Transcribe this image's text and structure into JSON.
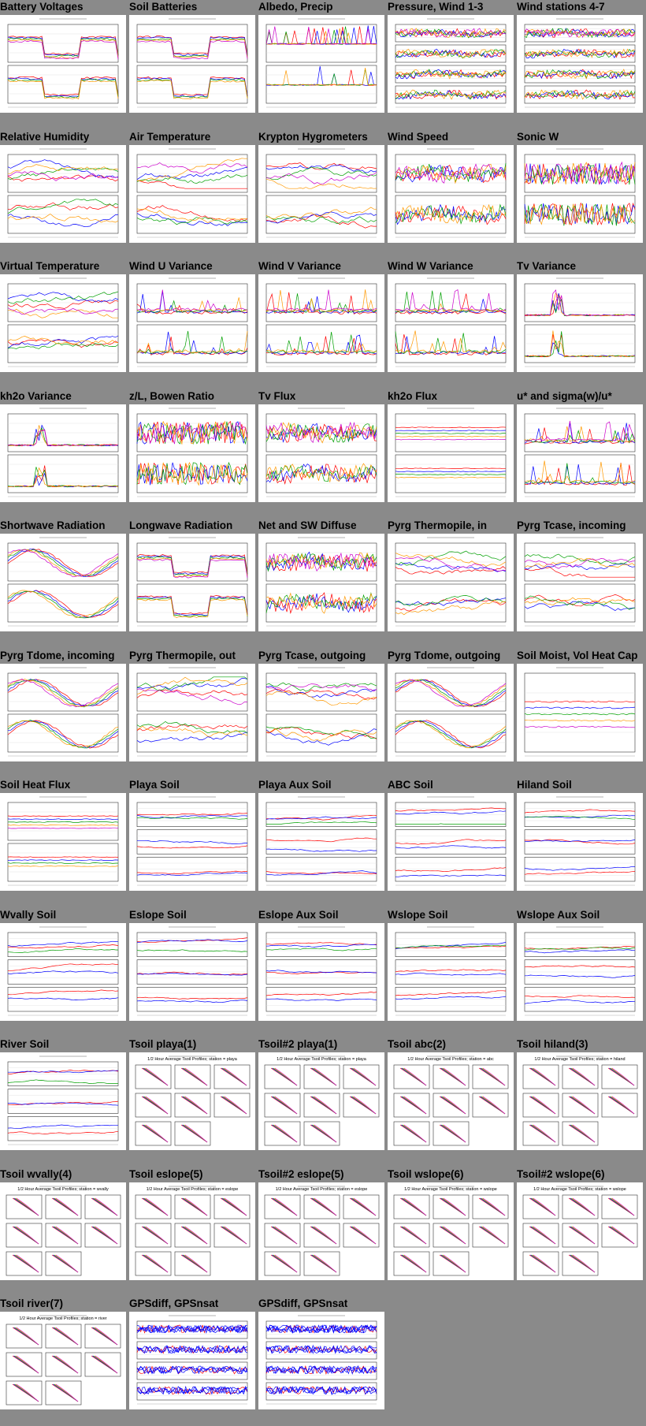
{
  "page": {
    "background": "#8a8a8a",
    "colors": [
      "#ff0000",
      "#0000ff",
      "#00a000",
      "#ff9900",
      "#cc00cc",
      "#00aaaa",
      "#888888",
      "#dddd00"
    ]
  },
  "plots": [
    {
      "title": "Battery Voltages",
      "kind": "ts2",
      "style": "battery"
    },
    {
      "title": "Soil Batteries",
      "kind": "ts2",
      "style": "battery"
    },
    {
      "title": "Albedo, Precip",
      "kind": "ts2",
      "style": "albedo"
    },
    {
      "title": "Pressure, Wind 1-3",
      "kind": "ts4",
      "style": "noisy"
    },
    {
      "title": "Wind stations 4-7",
      "kind": "ts4",
      "style": "noisy"
    },
    {
      "title": "Relative Humidity",
      "kind": "ts2",
      "style": "wavy"
    },
    {
      "title": "Air Temperature",
      "kind": "ts2",
      "style": "wavy"
    },
    {
      "title": "Krypton Hygrometers",
      "kind": "ts2",
      "style": "wavy"
    },
    {
      "title": "Wind Speed",
      "kind": "ts2",
      "style": "noisy"
    },
    {
      "title": "Sonic W",
      "kind": "ts2",
      "style": "dense"
    },
    {
      "title": "Virtual Temperature",
      "kind": "ts2",
      "style": "wavy"
    },
    {
      "title": "Wind U Variance",
      "kind": "ts2",
      "style": "spiky"
    },
    {
      "title": "Wind V Variance",
      "kind": "ts2",
      "style": "spiky"
    },
    {
      "title": "Wind W Variance",
      "kind": "ts2",
      "style": "spiky"
    },
    {
      "title": "Tv Variance",
      "kind": "ts2",
      "style": "peak"
    },
    {
      "title": "kh2o Variance",
      "kind": "ts2",
      "style": "peak"
    },
    {
      "title": "z/L, Bowen Ratio",
      "kind": "ts2",
      "style": "dense"
    },
    {
      "title": "Tv Flux",
      "kind": "ts2",
      "style": "noisy"
    },
    {
      "title": "kh2o Flux",
      "kind": "ts2",
      "style": "flat"
    },
    {
      "title": "u* and sigma(w)/u*",
      "kind": "ts2",
      "style": "spiky"
    },
    {
      "title": "Shortwave Radiation",
      "kind": "ts2",
      "style": "diurnal"
    },
    {
      "title": "Longwave Radiation",
      "kind": "ts2",
      "style": "battery"
    },
    {
      "title": "Net and SW Diffuse",
      "kind": "ts2",
      "style": "noisy"
    },
    {
      "title": "Pyrg Thermopile, in",
      "kind": "ts2",
      "style": "wavy"
    },
    {
      "title": "Pyrg Tcase, incoming",
      "kind": "ts2",
      "style": "wavy"
    },
    {
      "title": "Pyrg Tdome, incoming",
      "kind": "ts2",
      "style": "diurnal"
    },
    {
      "title": "Pyrg Thermopile, out",
      "kind": "ts2",
      "style": "wavy"
    },
    {
      "title": "Pyrg Tcase, outgoing",
      "kind": "ts2",
      "style": "wavy"
    },
    {
      "title": "Pyrg Tdome, outgoing",
      "kind": "ts2",
      "style": "diurnal"
    },
    {
      "title": "Soil Moist, Vol Heat Cap",
      "kind": "ts1",
      "style": "flat"
    },
    {
      "title": "Soil Heat Flux",
      "kind": "ts2",
      "style": "flat"
    },
    {
      "title": "Playa Soil",
      "kind": "ts3",
      "style": "soil"
    },
    {
      "title": "Playa Aux Soil",
      "kind": "ts3",
      "style": "soil"
    },
    {
      "title": "ABC Soil",
      "kind": "ts3",
      "style": "soil"
    },
    {
      "title": "Hiland Soil",
      "kind": "ts3",
      "style": "soil"
    },
    {
      "title": "Wvally Soil",
      "kind": "ts3",
      "style": "soil"
    },
    {
      "title": "Eslope Soil",
      "kind": "ts3",
      "style": "soil"
    },
    {
      "title": "Eslope Aux Soil",
      "kind": "ts3",
      "style": "soil"
    },
    {
      "title": "Wslope Soil",
      "kind": "ts3",
      "style": "soil"
    },
    {
      "title": "Wslope Aux Soil",
      "kind": "ts3",
      "style": "soil"
    },
    {
      "title": "River Soil",
      "kind": "ts3",
      "style": "soil"
    },
    {
      "title": "Tsoil playa(1)",
      "kind": "prof",
      "style": "profile",
      "subtitle": "1/2 Hour Average Tsoil Profiles; station = playa"
    },
    {
      "title": "Tsoil#2 playa(1)",
      "kind": "prof",
      "style": "profile",
      "subtitle": "1/2 Hour Average Tsoil Profiles; station = playa"
    },
    {
      "title": "Tsoil abc(2)",
      "kind": "prof",
      "style": "profile",
      "subtitle": "1/2 Hour Average Tsoil Profiles; station = abc"
    },
    {
      "title": "Tsoil hiland(3)",
      "kind": "prof",
      "style": "profile",
      "subtitle": "1/2 Hour Average Tsoil Profiles; station = hiland"
    },
    {
      "title": "Tsoil wvally(4)",
      "kind": "prof",
      "style": "profile",
      "subtitle": "1/2 Hour Average Tsoil Profiles; station = wvally"
    },
    {
      "title": "Tsoil eslope(5)",
      "kind": "prof",
      "style": "profile",
      "subtitle": "1/2 Hour Average Tsoil Profiles; station = eslope"
    },
    {
      "title": "Tsoil#2 eslope(5)",
      "kind": "prof",
      "style": "profile",
      "subtitle": "1/2 Hour Average Tsoil Profiles; station = eslope"
    },
    {
      "title": "Tsoil wslope(6)",
      "kind": "prof",
      "style": "profile",
      "subtitle": "1/2 Hour Average Tsoil Profiles; station = wslope"
    },
    {
      "title": "Tsoil#2 wslope(6)",
      "kind": "prof",
      "style": "profile",
      "subtitle": "1/2 Hour Average Tsoil Profiles; station = wslope"
    },
    {
      "title": "Tsoil river(7)",
      "kind": "prof",
      "style": "profile",
      "subtitle": "1/2 Hour Average Tsoil Profiles; station = river"
    },
    {
      "title": "GPSdiff, GPSnsat",
      "kind": "ts4",
      "style": "gps"
    },
    {
      "title": "GPSdiff, GPSnsat",
      "kind": "ts4",
      "style": "gps"
    }
  ]
}
